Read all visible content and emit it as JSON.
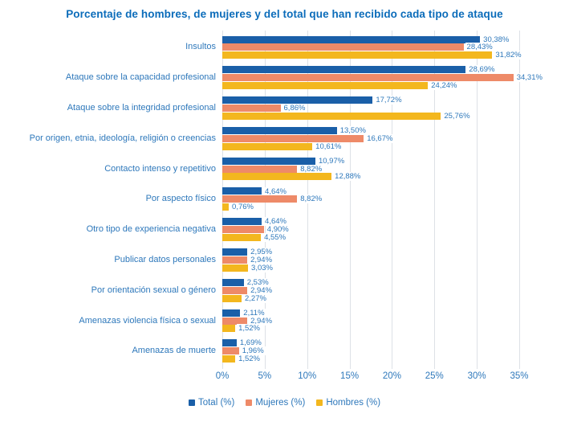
{
  "title": "Porcentaje de hombres, de mujeres y del total que han recibido cada tipo de ataque",
  "colors": {
    "total": "#1a5fa8",
    "mujeres": "#ee8a68",
    "hombres": "#f3b71e",
    "title_text": "#0b6cba",
    "label_text": "#2e78bb",
    "gridline": "#dde1e6"
  },
  "chart_data": {
    "type": "bar",
    "orientation": "horizontal",
    "title": "Porcentaje de hombres, de mujeres y del total que han recibido cada tipo de ataque",
    "categories": [
      "Insultos",
      "Ataque sobre la capacidad profesional",
      "Ataque sobre la integridad profesional",
      "Por origen, etnia, ideología, religión o creencias",
      "Contacto intenso y repetitivo",
      "Por aspecto físico",
      "Otro tipo de experiencia negativa",
      "Publicar datos personales",
      "Por orientación sexual o género",
      "Amenazas violencia física o sexual",
      "Amenazas de muerte"
    ],
    "series": [
      {
        "name": "Total (%)",
        "color_key": "total",
        "values": [
          30.38,
          28.69,
          17.72,
          13.5,
          10.97,
          4.64,
          4.64,
          2.95,
          2.53,
          2.11,
          1.69
        ]
      },
      {
        "name": "Mujeres (%)",
        "color_key": "mujeres",
        "values": [
          28.43,
          34.31,
          6.86,
          16.67,
          8.82,
          8.82,
          4.9,
          2.94,
          2.94,
          2.94,
          1.96
        ]
      },
      {
        "name": "Hombres (%)",
        "color_key": "hombres",
        "values": [
          31.82,
          24.24,
          25.76,
          10.61,
          12.88,
          0.76,
          4.55,
          3.03,
          2.27,
          1.52,
          1.52
        ]
      }
    ],
    "xlim": [
      0,
      35
    ],
    "x_ticks": [
      "0%",
      "5%",
      "10%",
      "15%",
      "20%",
      "25%",
      "30%",
      "35%"
    ],
    "value_suffix": "%",
    "decimal_separator": ",",
    "grid": "vertical",
    "legend_position": "bottom"
  },
  "legend": {
    "items": [
      {
        "label": "Total (%)",
        "color_key": "total"
      },
      {
        "label": "Mujeres (%)",
        "color_key": "mujeres"
      },
      {
        "label": "Hombres (%)",
        "color_key": "hombres"
      }
    ]
  }
}
